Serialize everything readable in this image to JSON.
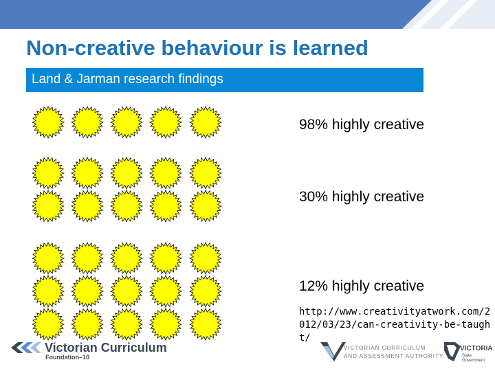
{
  "slide": {
    "title": "Non-creative behaviour is learned",
    "subtitle": "Land & Jarman research findings",
    "findings": [
      {
        "label": "98% highly creative",
        "rows": 1
      },
      {
        "label": "30% highly creative",
        "rows": 2
      },
      {
        "label": "12% highly creative",
        "rows": 3
      }
    ],
    "stars_per_row": 5,
    "source_url": "http://www.creativityatwork.com/2012/03/23/can-creativity-be-taught/"
  },
  "footer": {
    "vc_logo_text": "Victorian Curriculum",
    "vc_logo_sub": "Foundation–10",
    "vcaa_line1": "VICTORIAN CURRICULUM",
    "vcaa_line2": "AND ASSESSMENT AUTHORITY",
    "vic_logo_text": "VICTORIA",
    "vic_logo_sub": "State Government"
  },
  "colors": {
    "title": "#1f73b7",
    "subtitle_bar": "#0a88d8",
    "star_fill": "#ffff00",
    "top_bar": "#4f7cc0"
  },
  "icons": [
    "star-icon",
    "vc-chevron-logo-icon",
    "vcaa-check-logo-icon",
    "victoria-state-logo-icon"
  ]
}
